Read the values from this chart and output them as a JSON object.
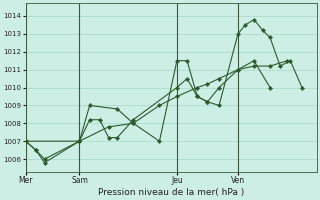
{
  "title": "Pression niveau de la mer( hPa )",
  "ylabel_ticks": [
    1006,
    1007,
    1008,
    1009,
    1010,
    1011,
    1012,
    1013,
    1014
  ],
  "ylim": [
    1005.3,
    1014.7
  ],
  "bg_color": "#cceee4",
  "grid_color": "#aaddcc",
  "line_color": "#2d5a2d",
  "marker_color": "#2d5a2d",
  "day_labels": [
    "Mer",
    "Sam",
    "Jeu",
    "Ven"
  ],
  "day_positions": [
    0.0,
    0.185,
    0.52,
    0.73
  ],
  "series1_x": [
    0.0,
    0.035,
    0.065,
    0.185,
    0.22,
    0.255,
    0.285,
    0.315,
    0.37,
    0.52,
    0.555,
    0.59,
    0.625,
    0.665,
    0.73,
    0.785,
    0.84
  ],
  "series1_y": [
    1007.0,
    1006.5,
    1006.0,
    1007.0,
    1008.2,
    1008.2,
    1007.2,
    1007.2,
    1008.2,
    1010.0,
    1010.5,
    1009.5,
    1009.2,
    1010.0,
    1011.0,
    1011.5,
    1010.0
  ],
  "series2_x": [
    0.0,
    0.185,
    0.285,
    0.37,
    0.46,
    0.52,
    0.59,
    0.625,
    0.665,
    0.73,
    0.785,
    0.84,
    0.9
  ],
  "series2_y": [
    1007.0,
    1007.0,
    1007.8,
    1008.0,
    1009.0,
    1009.5,
    1010.0,
    1010.2,
    1010.5,
    1011.0,
    1011.2,
    1011.2,
    1011.5
  ],
  "series3_x": [
    0.0,
    0.035,
    0.065,
    0.185,
    0.22,
    0.315,
    0.37,
    0.46,
    0.52,
    0.555,
    0.59,
    0.625,
    0.665,
    0.73,
    0.755,
    0.785,
    0.815,
    0.84,
    0.875,
    0.91,
    0.95
  ],
  "series3_y": [
    1007.0,
    1006.5,
    1005.8,
    1007.0,
    1009.0,
    1008.8,
    1008.0,
    1007.0,
    1011.5,
    1011.5,
    1009.5,
    1009.2,
    1009.0,
    1013.0,
    1013.5,
    1013.8,
    1013.2,
    1012.8,
    1011.2,
    1011.5,
    1010.0
  ],
  "xlim": [
    0.0,
    1.0
  ]
}
